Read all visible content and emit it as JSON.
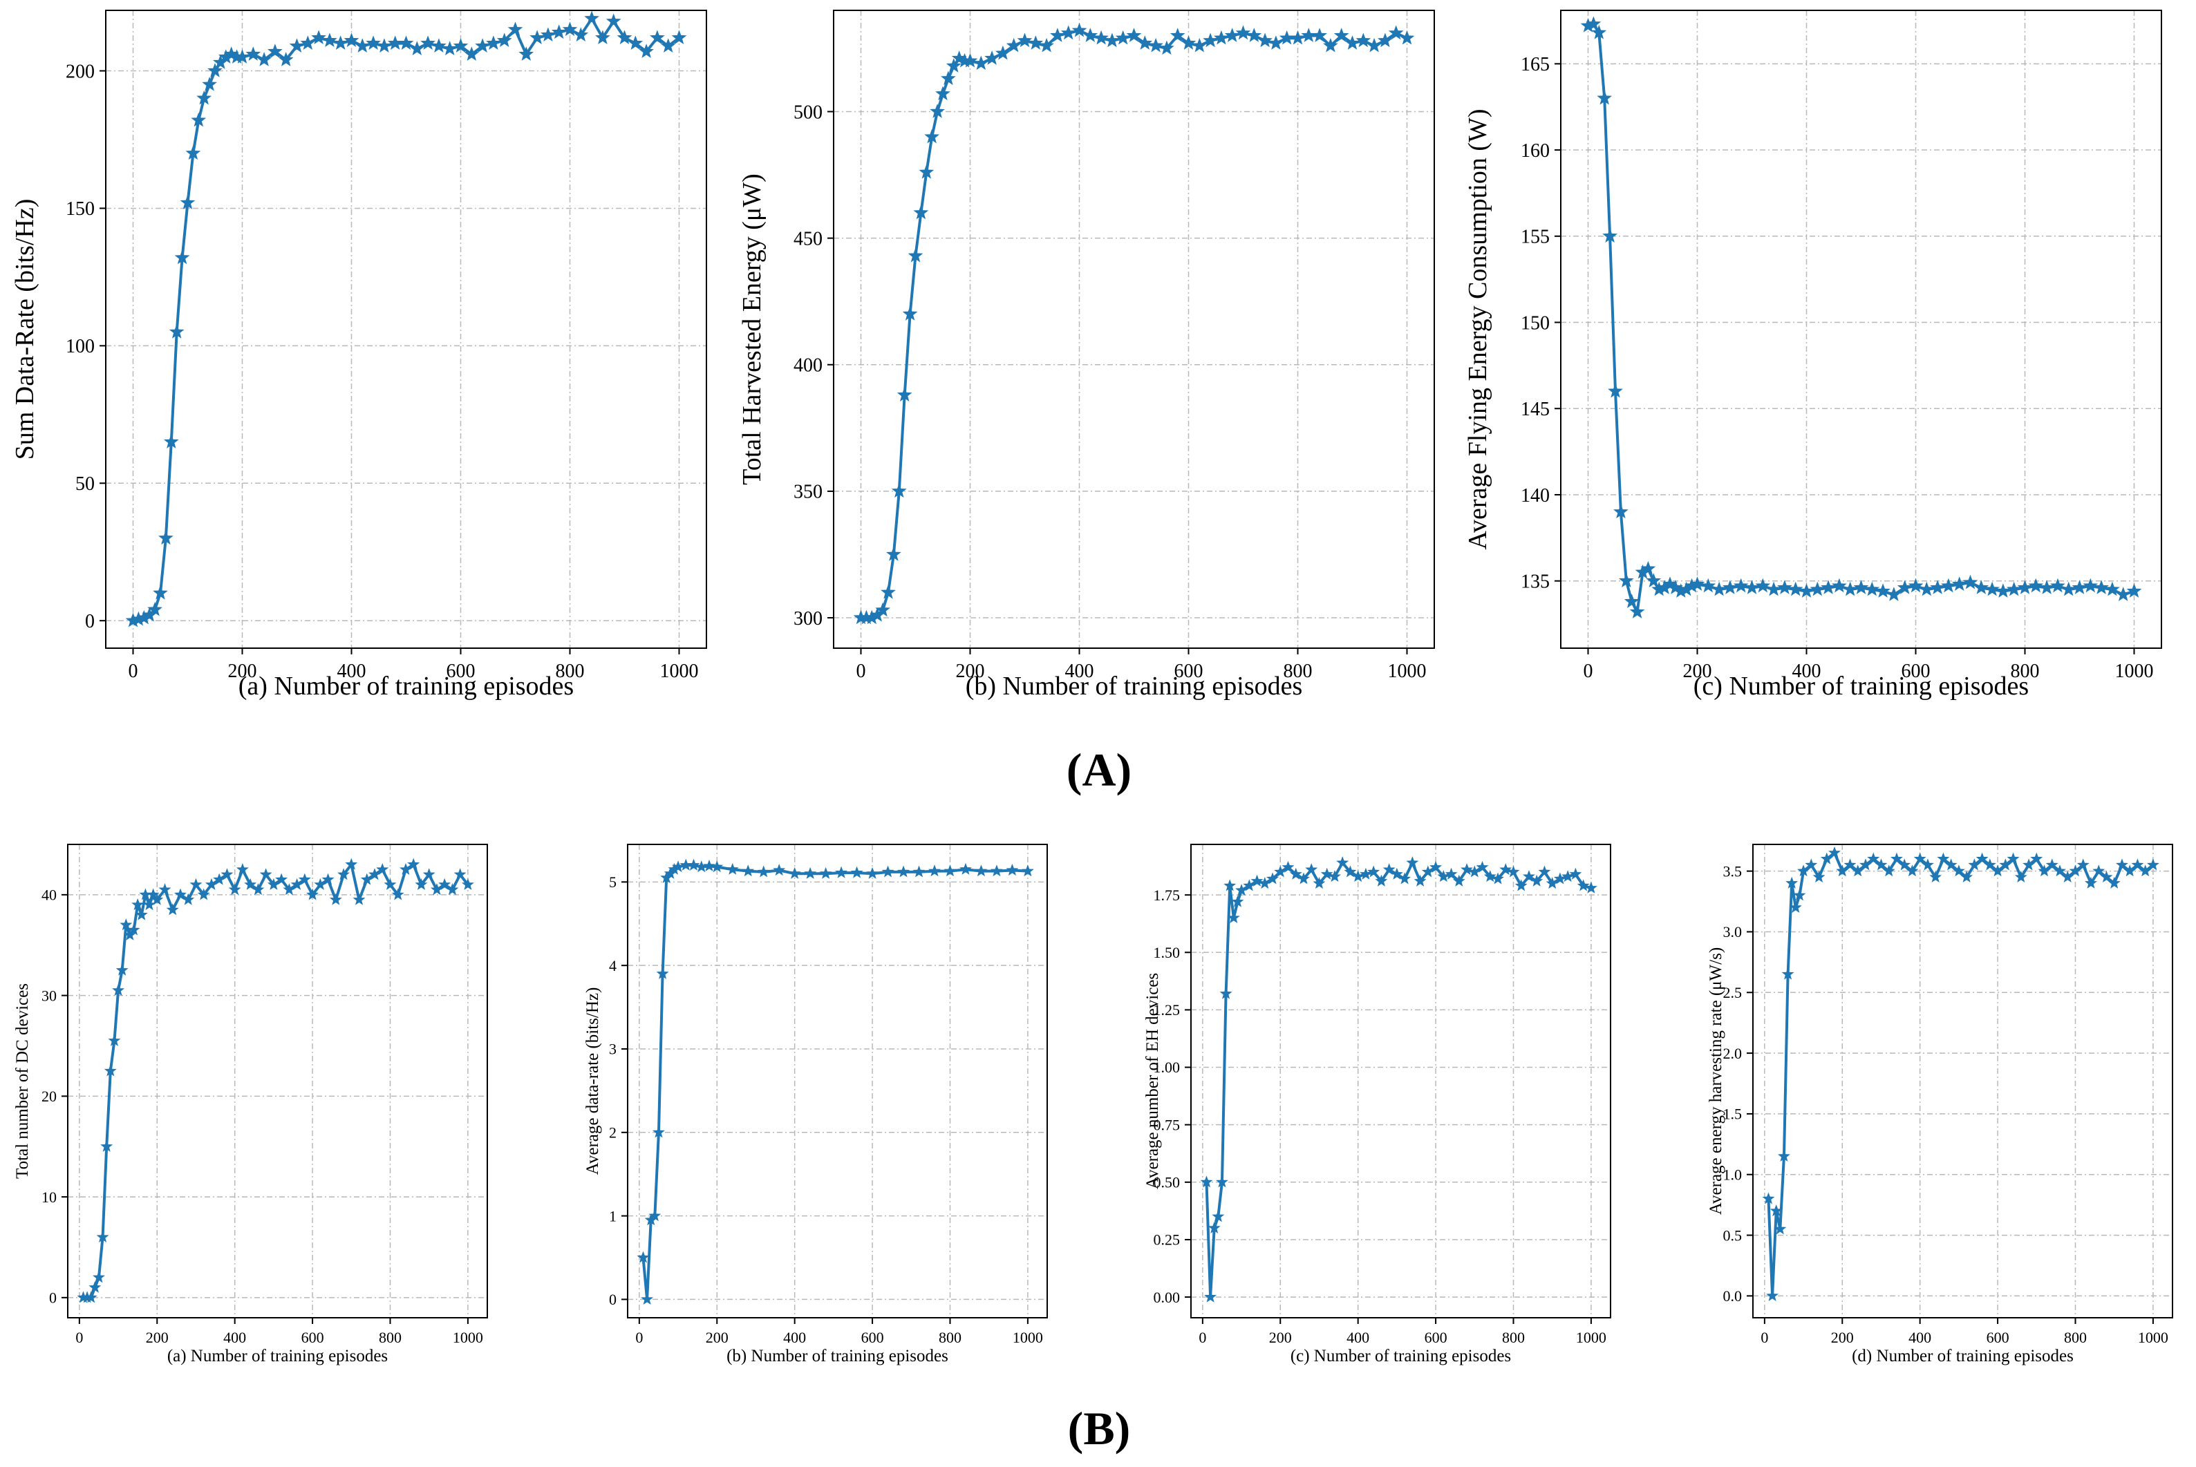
{
  "figure": {
    "group_A_label": "(A)",
    "group_B_label": "(B)",
    "line_color": "#1f77b4"
  },
  "chart_data": [
    {
      "id": "A-a",
      "type": "line",
      "group": "A",
      "xlabel": "(a) Number of training episodes",
      "ylabel": "Sum Data-Rate (bits/Hz)",
      "xlim": [
        -50,
        1050
      ],
      "ylim": [
        -10,
        222
      ],
      "xticks": [
        0,
        200,
        400,
        600,
        800,
        1000
      ],
      "yticks": [
        0,
        50,
        100,
        150,
        200
      ],
      "grid": true,
      "marker": "star",
      "x": [
        0,
        10,
        20,
        30,
        40,
        50,
        60,
        70,
        80,
        90,
        100,
        110,
        120,
        130,
        140,
        150,
        160,
        170,
        180,
        190,
        200,
        220,
        240,
        260,
        280,
        300,
        320,
        340,
        360,
        380,
        400,
        420,
        440,
        460,
        480,
        500,
        520,
        540,
        560,
        580,
        600,
        620,
        640,
        660,
        680,
        700,
        720,
        740,
        760,
        780,
        800,
        820,
        840,
        860,
        880,
        900,
        920,
        940,
        960,
        980,
        1000
      ],
      "y": [
        0,
        0.5,
        1,
        2,
        4,
        10,
        30,
        65,
        105,
        132,
        152,
        170,
        182,
        190,
        195,
        200,
        203,
        205,
        206,
        205,
        205,
        206,
        204,
        207,
        204,
        209,
        210,
        212,
        211,
        210,
        211,
        209,
        210,
        209,
        210,
        210,
        208,
        210,
        209,
        208,
        209,
        206,
        209,
        210,
        211,
        215,
        206,
        212,
        213,
        214,
        215,
        213,
        219,
        212,
        218,
        212,
        210,
        207,
        212,
        209,
        212
      ]
    },
    {
      "id": "A-b",
      "type": "line",
      "group": "A",
      "xlabel": "(b) Number of training episodes",
      "ylabel": "Total Harvested Energy (μW)",
      "xlim": [
        -50,
        1050
      ],
      "ylim": [
        288,
        540
      ],
      "xticks": [
        0,
        200,
        400,
        600,
        800,
        1000
      ],
      "yticks": [
        300,
        350,
        400,
        450,
        500
      ],
      "grid": true,
      "marker": "star",
      "x": [
        0,
        10,
        20,
        30,
        40,
        50,
        60,
        70,
        80,
        90,
        100,
        110,
        120,
        130,
        140,
        150,
        160,
        170,
        180,
        190,
        200,
        220,
        240,
        260,
        280,
        300,
        320,
        340,
        360,
        380,
        400,
        420,
        440,
        460,
        480,
        500,
        520,
        540,
        560,
        580,
        600,
        620,
        640,
        660,
        680,
        700,
        720,
        740,
        760,
        780,
        800,
        820,
        840,
        860,
        880,
        900,
        920,
        940,
        960,
        980,
        1000
      ],
      "y": [
        300,
        300,
        300,
        301,
        303,
        310,
        325,
        350,
        388,
        420,
        443,
        460,
        476,
        490,
        500,
        507,
        513,
        518,
        521,
        520,
        520,
        519,
        521,
        523,
        526,
        528,
        527,
        526,
        530,
        531,
        532,
        530,
        529,
        528,
        529,
        530,
        527,
        526,
        525,
        530,
        527,
        526,
        528,
        529,
        530,
        531,
        530,
        528,
        527,
        529,
        529,
        530,
        530,
        526,
        530,
        527,
        528,
        526,
        528,
        531,
        529
      ]
    },
    {
      "id": "A-c",
      "type": "line",
      "group": "A",
      "xlabel": "(c) Number of training episodes",
      "ylabel": "Average Flying Energy Consumption (W)",
      "xlim": [
        -50,
        1050
      ],
      "ylim": [
        131.1,
        168.1
      ],
      "xticks": [
        0,
        200,
        400,
        600,
        800,
        1000
      ],
      "yticks": [
        135,
        140,
        145,
        150,
        155,
        160,
        165
      ],
      "grid": true,
      "marker": "star",
      "x": [
        0,
        10,
        20,
        30,
        40,
        50,
        60,
        70,
        80,
        90,
        100,
        110,
        120,
        130,
        140,
        150,
        160,
        170,
        180,
        190,
        200,
        220,
        240,
        260,
        280,
        300,
        320,
        340,
        360,
        380,
        400,
        420,
        440,
        460,
        480,
        500,
        520,
        540,
        560,
        580,
        600,
        620,
        640,
        660,
        680,
        700,
        720,
        740,
        760,
        780,
        800,
        820,
        840,
        860,
        880,
        900,
        920,
        940,
        960,
        980,
        1000
      ],
      "y": [
        167.2,
        167.3,
        166.8,
        163,
        155,
        146,
        139,
        135,
        133.8,
        133.2,
        135.5,
        135.7,
        135,
        134.5,
        134.6,
        134.8,
        134.6,
        134.4,
        134.5,
        134.7,
        134.8,
        134.7,
        134.5,
        134.6,
        134.7,
        134.6,
        134.7,
        134.5,
        134.6,
        134.5,
        134.4,
        134.5,
        134.6,
        134.7,
        134.5,
        134.6,
        134.5,
        134.4,
        134.2,
        134.6,
        134.7,
        134.5,
        134.6,
        134.7,
        134.8,
        134.9,
        134.6,
        134.5,
        134.4,
        134.5,
        134.6,
        134.7,
        134.6,
        134.7,
        134.5,
        134.6,
        134.7,
        134.6,
        134.5,
        134.2,
        134.4
      ]
    },
    {
      "id": "B-a",
      "type": "line",
      "group": "B",
      "xlabel": "(a) Number of training episodes",
      "ylabel": "Total number of DC devices",
      "xlim": [
        -30,
        1050
      ],
      "ylim": [
        -2,
        45
      ],
      "xticks": [
        0,
        200,
        400,
        600,
        800,
        1000
      ],
      "yticks": [
        0,
        10,
        20,
        30,
        40
      ],
      "grid": true,
      "marker": "star",
      "x": [
        10,
        20,
        30,
        40,
        50,
        60,
        70,
        80,
        90,
        100,
        110,
        120,
        130,
        140,
        150,
        160,
        170,
        180,
        190,
        200,
        220,
        240,
        260,
        280,
        300,
        320,
        340,
        360,
        380,
        400,
        420,
        440,
        460,
        480,
        500,
        520,
        540,
        560,
        580,
        600,
        620,
        640,
        660,
        680,
        700,
        720,
        740,
        760,
        780,
        800,
        820,
        840,
        860,
        880,
        900,
        920,
        940,
        960,
        980,
        1000
      ],
      "y": [
        0,
        0,
        0,
        1,
        2,
        6,
        15,
        22.5,
        25.5,
        30.5,
        32.5,
        37,
        36,
        36.5,
        39,
        38,
        40,
        39,
        40,
        39.5,
        40.5,
        38.5,
        40,
        39.5,
        41,
        40,
        41,
        41.5,
        42,
        40.5,
        42.5,
        41,
        40.5,
        42,
        41,
        41.5,
        40.5,
        41,
        41.5,
        40,
        41,
        41.5,
        39.5,
        42,
        43,
        39.5,
        41.5,
        42,
        42.5,
        41,
        40,
        42.5,
        43,
        41,
        42,
        40.5,
        41,
        40.5,
        42,
        41
      ]
    },
    {
      "id": "B-b",
      "type": "line",
      "group": "B",
      "xlabel": "(b) Number of training episodes",
      "ylabel": "Average data-rate (bits/Hz)",
      "xlim": [
        -30,
        1050
      ],
      "ylim": [
        -0.22,
        5.45
      ],
      "xticks": [
        0,
        200,
        400,
        600,
        800,
        1000
      ],
      "yticks": [
        0,
        1,
        2,
        3,
        4,
        5
      ],
      "grid": true,
      "marker": "star",
      "x": [
        10,
        20,
        30,
        40,
        50,
        60,
        70,
        80,
        90,
        100,
        120,
        140,
        160,
        180,
        200,
        240,
        280,
        320,
        360,
        400,
        440,
        480,
        520,
        560,
        600,
        640,
        680,
        720,
        760,
        800,
        840,
        880,
        920,
        960,
        1000
      ],
      "y": [
        0.5,
        0,
        0.95,
        1,
        2,
        3.9,
        5.05,
        5.1,
        5.15,
        5.18,
        5.2,
        5.2,
        5.18,
        5.19,
        5.18,
        5.15,
        5.13,
        5.12,
        5.14,
        5.1,
        5.1,
        5.1,
        5.11,
        5.11,
        5.1,
        5.12,
        5.12,
        5.12,
        5.13,
        5.13,
        5.15,
        5.13,
        5.13,
        5.14,
        5.13
      ]
    },
    {
      "id": "B-c",
      "type": "line",
      "group": "B",
      "xlabel": "(c) Number of training episodes",
      "ylabel": "Average number of EH devices",
      "xlim": [
        -30,
        1050
      ],
      "ylim": [
        -0.09,
        1.97
      ],
      "xticks": [
        0,
        200,
        400,
        600,
        800,
        1000
      ],
      "yticks": [
        0.0,
        0.25,
        0.5,
        0.75,
        1.0,
        1.25,
        1.5,
        1.75
      ],
      "grid": true,
      "marker": "star",
      "x": [
        10,
        20,
        30,
        40,
        50,
        60,
        70,
        80,
        90,
        100,
        120,
        140,
        160,
        180,
        200,
        220,
        240,
        260,
        280,
        300,
        320,
        340,
        360,
        380,
        400,
        420,
        440,
        460,
        480,
        500,
        520,
        540,
        560,
        580,
        600,
        620,
        640,
        660,
        680,
        700,
        720,
        740,
        760,
        780,
        800,
        820,
        840,
        860,
        880,
        900,
        920,
        940,
        960,
        980,
        1000
      ],
      "y": [
        0.5,
        0,
        0.3,
        0.35,
        0.5,
        1.32,
        1.79,
        1.65,
        1.72,
        1.77,
        1.79,
        1.81,
        1.8,
        1.82,
        1.85,
        1.87,
        1.84,
        1.82,
        1.86,
        1.8,
        1.84,
        1.83,
        1.89,
        1.85,
        1.83,
        1.84,
        1.85,
        1.81,
        1.86,
        1.84,
        1.82,
        1.89,
        1.81,
        1.85,
        1.87,
        1.83,
        1.84,
        1.81,
        1.86,
        1.85,
        1.87,
        1.83,
        1.82,
        1.86,
        1.85,
        1.79,
        1.83,
        1.81,
        1.85,
        1.8,
        1.82,
        1.83,
        1.84,
        1.79,
        1.78
      ]
    },
    {
      "id": "B-d",
      "type": "line",
      "group": "B",
      "xlabel": "(d) Number of training episodes",
      "ylabel": "Average energy harvesting rate (μW/s)",
      "xlim": [
        -30,
        1050
      ],
      "ylim": [
        -0.18,
        3.72
      ],
      "xticks": [
        0,
        200,
        400,
        600,
        800,
        1000
      ],
      "yticks": [
        0.0,
        0.5,
        1.0,
        1.5,
        2.0,
        2.5,
        3.0,
        3.5
      ],
      "grid": true,
      "marker": "star",
      "x": [
        10,
        20,
        30,
        40,
        50,
        60,
        70,
        80,
        90,
        100,
        120,
        140,
        160,
        180,
        200,
        220,
        240,
        260,
        280,
        300,
        320,
        340,
        360,
        380,
        400,
        420,
        440,
        460,
        480,
        500,
        520,
        540,
        560,
        580,
        600,
        620,
        640,
        660,
        680,
        700,
        720,
        740,
        760,
        780,
        800,
        820,
        840,
        860,
        880,
        900,
        920,
        940,
        960,
        980,
        1000
      ],
      "y": [
        0.8,
        0,
        0.7,
        0.55,
        1.15,
        2.65,
        3.4,
        3.2,
        3.3,
        3.5,
        3.55,
        3.45,
        3.6,
        3.65,
        3.5,
        3.55,
        3.5,
        3.55,
        3.6,
        3.55,
        3.5,
        3.6,
        3.55,
        3.5,
        3.6,
        3.55,
        3.45,
        3.6,
        3.55,
        3.5,
        3.45,
        3.55,
        3.6,
        3.55,
        3.5,
        3.55,
        3.6,
        3.45,
        3.55,
        3.6,
        3.5,
        3.55,
        3.5,
        3.45,
        3.5,
        3.55,
        3.4,
        3.5,
        3.45,
        3.4,
        3.55,
        3.5,
        3.55,
        3.5,
        3.55
      ]
    }
  ]
}
